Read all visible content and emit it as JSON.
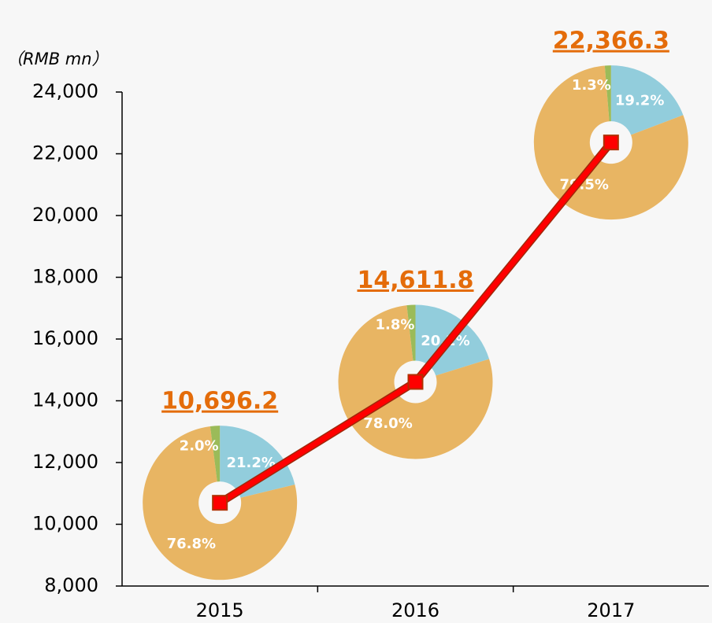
{
  "chart_data": {
    "type": "line",
    "unit_label": "（RMB mn）",
    "categories": [
      "2015",
      "2016",
      "2017"
    ],
    "values": [
      10696.2,
      14611.8,
      22366.3
    ],
    "value_labels": [
      "10,696.2",
      "14,611.8",
      "22,366.3"
    ],
    "color": "#ff0000",
    "ylim": [
      8000,
      24000
    ],
    "yticks": [
      {
        "value": 8000,
        "label": "8,000"
      },
      {
        "value": 10000,
        "label": "10,000"
      },
      {
        "value": 12000,
        "label": "12,000"
      },
      {
        "value": 14000,
        "label": "14,000"
      },
      {
        "value": 16000,
        "label": "16,000"
      },
      {
        "value": 18000,
        "label": "18,000"
      },
      {
        "value": 20000,
        "label": "20,000"
      },
      {
        "value": 22000,
        "label": "22,000"
      },
      {
        "value": 24000,
        "label": "24,000"
      }
    ],
    "pie_colors": [
      "#92cddc",
      "#e8b563",
      "#9bbb59"
    ],
    "pies": [
      {
        "values": [
          21.2,
          76.8,
          2.0
        ],
        "value_labels": [
          "21.2%",
          "76.8%",
          "2.0%"
        ]
      },
      {
        "values": [
          20.2,
          78.0,
          1.8
        ],
        "value_labels": [
          "20.2%",
          "78.0%",
          "1.8%"
        ]
      },
      {
        "values": [
          19.2,
          79.5,
          1.3
        ],
        "value_labels": [
          "19.2%",
          "79.5%",
          "1.3%"
        ]
      }
    ]
  }
}
